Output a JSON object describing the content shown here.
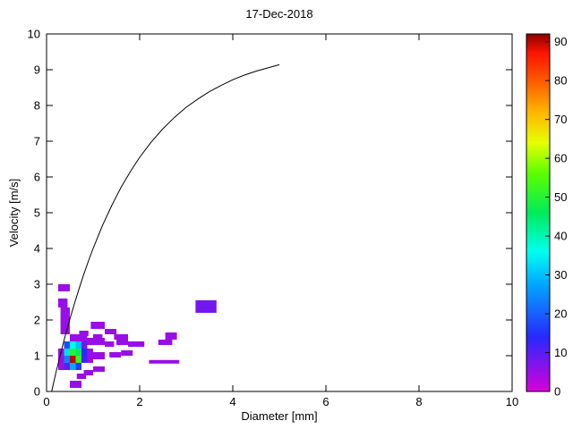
{
  "figure": {
    "title": "17-Dec-2018",
    "xlabel": "Diameter [mm]",
    "ylabel": "Velocity [m/s]"
  },
  "chart_data": {
    "type": "heatmap",
    "title": "17-Dec-2018",
    "xlabel": "Diameter [mm]",
    "ylabel": "Velocity [m/s]",
    "xlim": [
      0,
      10
    ],
    "ylim": [
      0,
      10
    ],
    "grid": false,
    "x_ticks": [
      0,
      2,
      4,
      6,
      8,
      10
    ],
    "y_ticks": [
      0,
      1,
      2,
      3,
      4,
      5,
      6,
      7,
      8,
      9,
      10
    ],
    "colorbar": {
      "min": 0,
      "max": 92,
      "ticks": [
        0,
        10,
        20,
        30,
        40,
        50,
        60,
        70,
        80,
        90
      ],
      "position": "right"
    },
    "colormap_stops": [
      [
        0,
        [
          216,
          0,
          216
        ]
      ],
      [
        14,
        [
          40,
          40,
          255
        ]
      ],
      [
        28,
        [
          0,
          170,
          255
        ]
      ],
      [
        36,
        [
          0,
          255,
          240
        ]
      ],
      [
        46,
        [
          0,
          235,
          90
        ]
      ],
      [
        56,
        [
          90,
          255,
          0
        ]
      ],
      [
        64,
        [
          230,
          255,
          0
        ]
      ],
      [
        72,
        [
          255,
          180,
          0
        ]
      ],
      [
        80,
        [
          255,
          90,
          0
        ]
      ],
      [
        87,
        [
          255,
          20,
          0
        ]
      ],
      [
        92,
        [
          140,
          0,
          0
        ]
      ]
    ],
    "cells": [
      {
        "d": 0.25,
        "v": 2.8,
        "w": 0.25,
        "h": 0.2,
        "count": 5
      },
      {
        "d": 0.25,
        "v": 2.35,
        "w": 0.2,
        "h": 0.25,
        "count": 5
      },
      {
        "d": 0.3,
        "v": 2.05,
        "w": 0.2,
        "h": 0.3,
        "count": 5
      },
      {
        "d": 0.3,
        "v": 1.6,
        "w": 0.2,
        "h": 0.45,
        "count": 5
      },
      {
        "d": 0.25,
        "v": 0.6,
        "w": 0.15,
        "h": 0.6,
        "count": 5
      },
      {
        "d": 0.375,
        "v": 1.2,
        "w": 0.125,
        "h": 0.2,
        "count": 18
      },
      {
        "d": 0.5,
        "v": 1.2,
        "w": 0.125,
        "h": 0.2,
        "count": 36
      },
      {
        "d": 0.625,
        "v": 1.2,
        "w": 0.125,
        "h": 0.2,
        "count": 30
      },
      {
        "d": 0.75,
        "v": 1.2,
        "w": 0.125,
        "h": 0.2,
        "count": 8
      },
      {
        "d": 0.375,
        "v": 1.0,
        "w": 0.125,
        "h": 0.2,
        "count": 33
      },
      {
        "d": 0.5,
        "v": 1.0,
        "w": 0.125,
        "h": 0.2,
        "count": 50
      },
      {
        "d": 0.625,
        "v": 1.0,
        "w": 0.125,
        "h": 0.2,
        "count": 46
      },
      {
        "d": 0.75,
        "v": 1.0,
        "w": 0.125,
        "h": 0.2,
        "count": 14
      },
      {
        "d": 0.375,
        "v": 0.8,
        "w": 0.125,
        "h": 0.2,
        "count": 24
      },
      {
        "d": 0.5,
        "v": 0.8,
        "w": 0.125,
        "h": 0.2,
        "count": 90
      },
      {
        "d": 0.625,
        "v": 0.8,
        "w": 0.125,
        "h": 0.2,
        "count": 52
      },
      {
        "d": 0.75,
        "v": 0.8,
        "w": 0.125,
        "h": 0.2,
        "count": 12
      },
      {
        "d": 0.375,
        "v": 0.6,
        "w": 0.125,
        "h": 0.2,
        "count": 10
      },
      {
        "d": 0.5,
        "v": 0.6,
        "w": 0.125,
        "h": 0.2,
        "count": 28
      },
      {
        "d": 0.625,
        "v": 0.6,
        "w": 0.125,
        "h": 0.2,
        "count": 16
      },
      {
        "d": 0.875,
        "v": 0.8,
        "w": 0.125,
        "h": 0.4,
        "count": 5
      },
      {
        "d": 0.5,
        "v": 1.4,
        "w": 0.375,
        "h": 0.2,
        "count": 5
      },
      {
        "d": 0.7,
        "v": 1.55,
        "w": 0.2,
        "h": 0.15,
        "count": 5
      },
      {
        "d": 0.5,
        "v": 0.1,
        "w": 0.25,
        "h": 0.2,
        "count": 5
      },
      {
        "d": 0.65,
        "v": 0.35,
        "w": 0.2,
        "h": 0.15,
        "count": 5
      },
      {
        "d": 0.8,
        "v": 0.45,
        "w": 0.2,
        "h": 0.15,
        "count": 5
      },
      {
        "d": 1.0,
        "v": 0.55,
        "w": 0.25,
        "h": 0.15,
        "count": 5
      },
      {
        "d": 1.0,
        "v": 0.9,
        "w": 0.25,
        "h": 0.2,
        "count": 5
      },
      {
        "d": 1.35,
        "v": 0.95,
        "w": 0.25,
        "h": 0.15,
        "count": 5
      },
      {
        "d": 1.6,
        "v": 1.0,
        "w": 0.25,
        "h": 0.15,
        "count": 5
      },
      {
        "d": 2.2,
        "v": 0.78,
        "w": 0.65,
        "h": 0.1,
        "count": 5
      },
      {
        "d": 0.875,
        "v": 1.3,
        "w": 0.375,
        "h": 0.2,
        "count": 5
      },
      {
        "d": 1.25,
        "v": 1.25,
        "w": 0.2,
        "h": 0.15,
        "count": 5
      },
      {
        "d": 1.5,
        "v": 1.3,
        "w": 0.25,
        "h": 0.2,
        "count": 5
      },
      {
        "d": 1.75,
        "v": 1.25,
        "w": 0.35,
        "h": 0.15,
        "count": 5
      },
      {
        "d": 2.4,
        "v": 1.3,
        "w": 0.3,
        "h": 0.15,
        "count": 5
      },
      {
        "d": 1.0,
        "v": 1.45,
        "w": 0.2,
        "h": 0.15,
        "count": 5
      },
      {
        "d": 1.45,
        "v": 1.45,
        "w": 0.3,
        "h": 0.15,
        "count": 5
      },
      {
        "d": 2.55,
        "v": 1.45,
        "w": 0.25,
        "h": 0.2,
        "count": 5
      },
      {
        "d": 1.25,
        "v": 1.6,
        "w": 0.25,
        "h": 0.15,
        "count": 5
      },
      {
        "d": 0.95,
        "v": 1.75,
        "w": 0.3,
        "h": 0.2,
        "count": 5
      },
      {
        "d": 3.2,
        "v": 2.2,
        "w": 0.45,
        "h": 0.35,
        "count": 8
      }
    ],
    "curve": {
      "points": [
        [
          0.11,
          0.0
        ],
        [
          0.2,
          0.52
        ],
        [
          0.3,
          1.05
        ],
        [
          0.4,
          1.55
        ],
        [
          0.5,
          2.02
        ],
        [
          0.6,
          2.46
        ],
        [
          0.7,
          2.88
        ],
        [
          0.8,
          3.28
        ],
        [
          0.9,
          3.65
        ],
        [
          1.0,
          4.0
        ],
        [
          1.2,
          4.64
        ],
        [
          1.4,
          5.2
        ],
        [
          1.6,
          5.71
        ],
        [
          1.8,
          6.15
        ],
        [
          2.0,
          6.55
        ],
        [
          2.25,
          6.98
        ],
        [
          2.5,
          7.35
        ],
        [
          2.75,
          7.67
        ],
        [
          3.0,
          7.95
        ],
        [
          3.25,
          8.18
        ],
        [
          3.5,
          8.39
        ],
        [
          3.75,
          8.56
        ],
        [
          4.0,
          8.72
        ],
        [
          4.25,
          8.85
        ],
        [
          4.5,
          8.96
        ],
        [
          4.75,
          9.05
        ],
        [
          5.0,
          9.14
        ]
      ]
    }
  }
}
